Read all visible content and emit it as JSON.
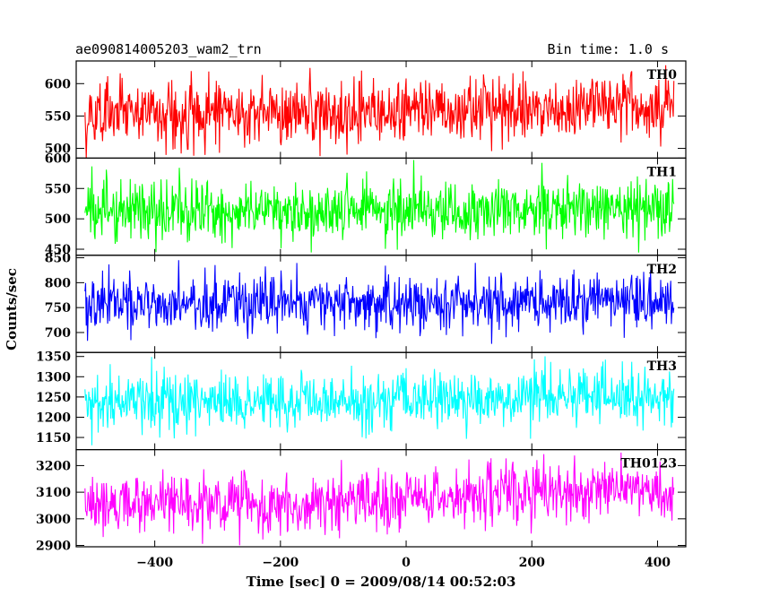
{
  "title": "ae090814005203_wam2_trn",
  "bin_time": "Bin time: 1.0 s",
  "ylabel": "Counts/sec",
  "xlabel": "Time [sec] 0 = 2009/08/14 00:52:03",
  "chart_data": {
    "type": "line",
    "x_range": [
      -511,
      426
    ],
    "xlim": [
      -525,
      445
    ],
    "x_ticks": [
      -400,
      -200,
      0,
      200,
      400
    ],
    "x_tick_labels": [
      "−400",
      "−200",
      "0",
      "200",
      "400"
    ],
    "panels": [
      {
        "name": "TH0",
        "color": "#ff0000",
        "ylim": [
          485,
          635
        ],
        "y_ticks": [
          500,
          550,
          600
        ],
        "y_tick_labels": [
          "500",
          "550",
          "600"
        ],
        "mean_profile": [
          [
            -511,
            555
          ],
          [
            -300,
            555
          ],
          [
            -100,
            552
          ],
          [
            50,
            558
          ],
          [
            200,
            560
          ],
          [
            426,
            565
          ]
        ],
        "noise_sigma": 25
      },
      {
        "name": "TH1",
        "color": "#00ff00",
        "ylim": [
          440,
          600
        ],
        "y_ticks": [
          450,
          500,
          550,
          600
        ],
        "y_tick_labels": [
          "450",
          "500",
          "550",
          "600"
        ],
        "mean_profile": [
          [
            -511,
            515
          ],
          [
            -100,
            513
          ],
          [
            426,
            518
          ]
        ],
        "noise_sigma": 24
      },
      {
        "name": "TH2",
        "color": "#0000ff",
        "ylim": [
          660,
          855
        ],
        "y_ticks": [
          700,
          750,
          800,
          850
        ],
        "y_tick_labels": [
          "700",
          "750",
          "800",
          "850"
        ],
        "mean_profile": [
          [
            -511,
            760
          ],
          [
            0,
            758
          ],
          [
            426,
            762
          ]
        ],
        "noise_sigma": 28
      },
      {
        "name": "TH3",
        "color": "#00ffff",
        "ylim": [
          1120,
          1360
        ],
        "y_ticks": [
          1150,
          1200,
          1250,
          1300,
          1350
        ],
        "y_tick_labels": [
          "1150",
          "1200",
          "1250",
          "1300",
          "1350"
        ],
        "mean_profile": [
          [
            -511,
            1235
          ],
          [
            -100,
            1235
          ],
          [
            100,
            1250
          ],
          [
            426,
            1255
          ]
        ],
        "noise_sigma": 35
      },
      {
        "name": "TH0123",
        "color": "#ff00ff",
        "ylim": [
          2895,
          3260
        ],
        "y_ticks": [
          2900,
          3000,
          3100,
          3200
        ],
        "y_tick_labels": [
          "2900",
          "3000",
          "3100",
          "3200"
        ],
        "mean_profile": [
          [
            -511,
            3060
          ],
          [
            -100,
            3060
          ],
          [
            100,
            3090
          ],
          [
            426,
            3100
          ]
        ],
        "noise_sigma": 55
      }
    ]
  }
}
